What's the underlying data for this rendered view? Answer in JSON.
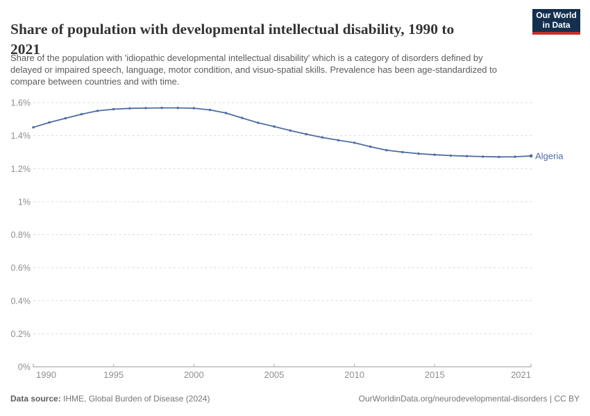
{
  "header": {
    "title": "Share of population with developmental intellectual disability, 1990 to 2021",
    "title_line1": "Share of population with developmental intellectual disability, 1990 to",
    "title_line2": "2021",
    "subtitle_lines": [
      "Share of the population with 'idiopathic developmental intellectual disability' which is a category of disorders defined by",
      "delayed or impaired speech, language, motor condition, and visuo-spatial skills. Prevalence has been age-standardized to",
      "compare between countries and with time."
    ],
    "logo": {
      "line1": "Our World",
      "line2": "in Data"
    }
  },
  "chart_data": {
    "type": "line",
    "title": "Share of population with developmental intellectual disability, 1990 to 2021",
    "xlabel": "",
    "ylabel": "",
    "xlim": [
      1990,
      2021
    ],
    "ylim": [
      0,
      1.6
    ],
    "grid": "horizontal-dashed",
    "legend_position": "end-of-line-label",
    "x_ticks": [
      1990,
      1995,
      2000,
      2005,
      2010,
      2015,
      2021
    ],
    "y_ticks": [
      {
        "v": 0,
        "label": "0%"
      },
      {
        "v": 0.2,
        "label": "0.2%"
      },
      {
        "v": 0.4,
        "label": "0.4%"
      },
      {
        "v": 0.6,
        "label": "0.6%"
      },
      {
        "v": 0.8,
        "label": "0.8%"
      },
      {
        "v": 1,
        "label": "1%"
      },
      {
        "v": 1.2,
        "label": "1.2%"
      },
      {
        "v": 1.4,
        "label": "1.4%"
      },
      {
        "v": 1.6,
        "label": "1.6%"
      }
    ],
    "series": [
      {
        "name": "Algeria",
        "unit": "%",
        "x": [
          1990,
          1991,
          1992,
          1993,
          1994,
          1995,
          1996,
          1997,
          1998,
          1999,
          2000,
          2001,
          2002,
          2003,
          2004,
          2005,
          2006,
          2007,
          2008,
          2009,
          2010,
          2011,
          2012,
          2013,
          2014,
          2015,
          2016,
          2017,
          2018,
          2019,
          2020,
          2021
        ],
        "values": [
          1.45,
          1.48,
          1.505,
          1.53,
          1.55,
          1.56,
          1.565,
          1.567,
          1.568,
          1.568,
          1.566,
          1.556,
          1.537,
          1.507,
          1.478,
          1.455,
          1.431,
          1.409,
          1.389,
          1.372,
          1.357,
          1.333,
          1.312,
          1.3,
          1.291,
          1.284,
          1.279,
          1.276,
          1.273,
          1.271,
          1.272,
          1.277
        ]
      }
    ]
  },
  "footer": {
    "data_source_label": "Data source:",
    "data_source_value": " IHME, Global Burden of Disease (2024)",
    "link": "OurWorldinData.org/neurodevelopmental-disorders | CC BY"
  },
  "colors": {
    "line": "#4C6CA4",
    "grid": "#dadada",
    "axis": "#9a9a9a",
    "tick": "#b4b4b4",
    "axis_label": "#8e8e8e",
    "title": "#333333",
    "subtitle": "#5b5b5b",
    "footer": "#757575",
    "logo_bg": "#14304F",
    "logo_accent": "#C9302C"
  }
}
